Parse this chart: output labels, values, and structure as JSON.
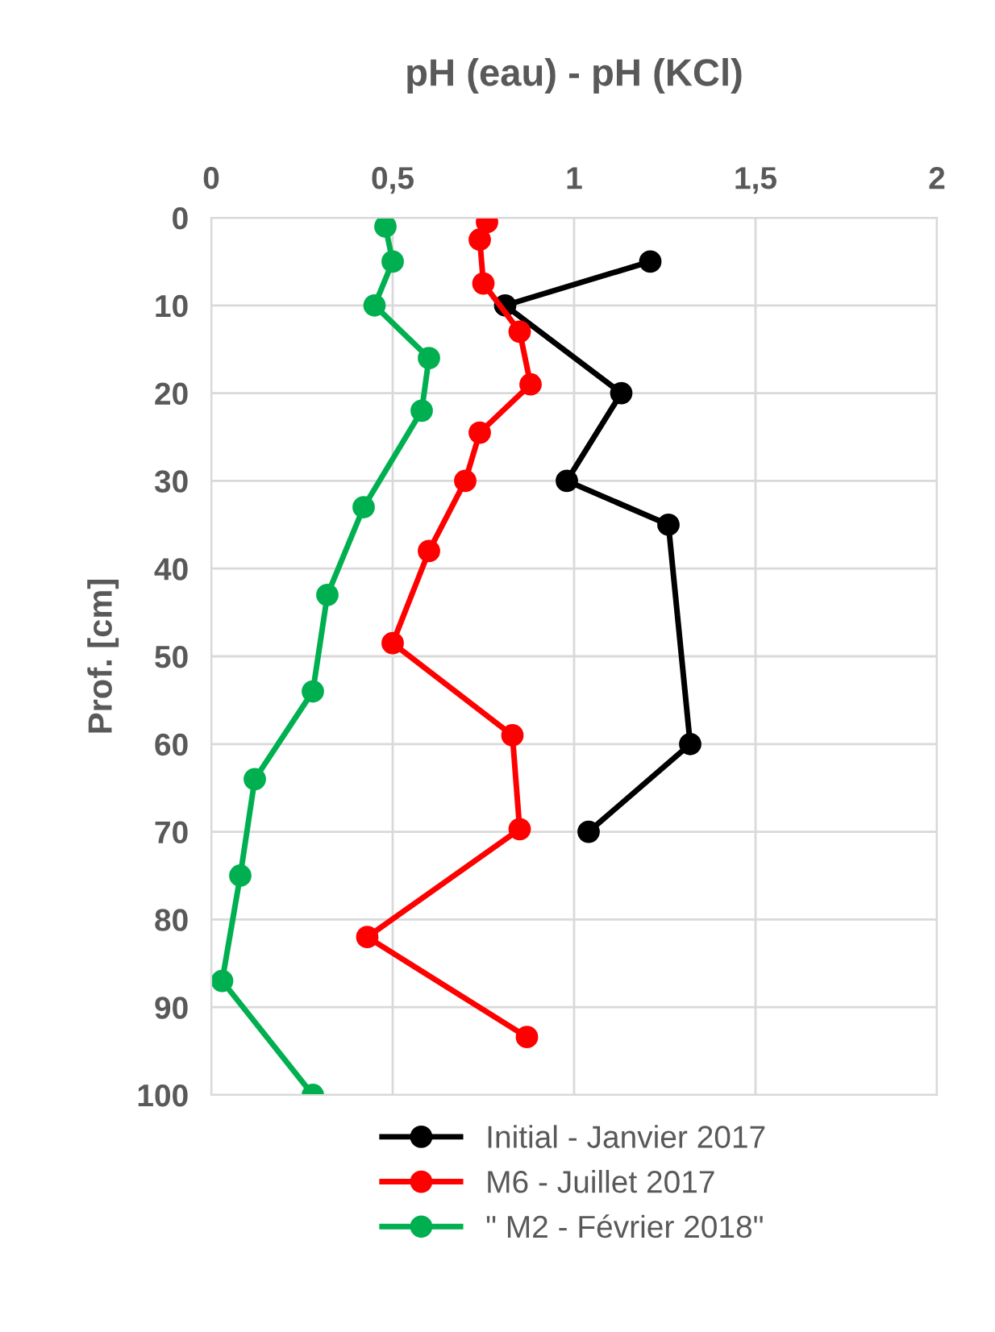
{
  "chart_data": {
    "type": "line",
    "title": "pH (eau) - pH (KCl)",
    "ylabel": "Prof. [cm]",
    "xlim": [
      0,
      2
    ],
    "xticks": [
      0,
      {
        "value": 0.5,
        "label": "0,5"
      },
      1,
      {
        "value": 1.5,
        "label": "1,5"
      },
      2
    ],
    "ylim": [
      100,
      0
    ],
    "yticks": [
      0,
      10,
      20,
      30,
      40,
      50,
      60,
      70,
      80,
      90,
      100
    ],
    "grid": true,
    "legend": "bottom",
    "marker": "circle",
    "line_style": "solid",
    "series": [
      {
        "name": "Initial - Janvier 2017",
        "color": "#000000",
        "x": [
          1.21,
          0.81,
          1.13,
          0.98,
          1.26,
          1.32,
          1.04
        ],
        "values": [
          5,
          10,
          20,
          30,
          35,
          60,
          70
        ]
      },
      {
        "name": "M6 - Juillet 2017",
        "color": "#ff0000",
        "x": [
          0.76,
          0.74,
          0.75,
          0.85,
          0.88,
          0.74,
          0.7,
          0.6,
          0.5,
          0.83,
          0.85,
          0.43,
          0.87
        ],
        "values": [
          0.5,
          2.5,
          7.5,
          13,
          19,
          24.5,
          30,
          38,
          48.5,
          59,
          69.7,
          82,
          93.4
        ]
      },
      {
        "name": "\" M2 - Février 2018\"",
        "color": "#00b050",
        "x": [
          0.48,
          0.5,
          0.45,
          0.6,
          0.58,
          0.42,
          0.32,
          0.28,
          0.12,
          0.08,
          0.03,
          0.28
        ],
        "values": [
          1,
          5,
          10,
          16,
          22,
          33,
          43,
          54,
          64,
          75,
          87,
          100
        ]
      }
    ]
  }
}
